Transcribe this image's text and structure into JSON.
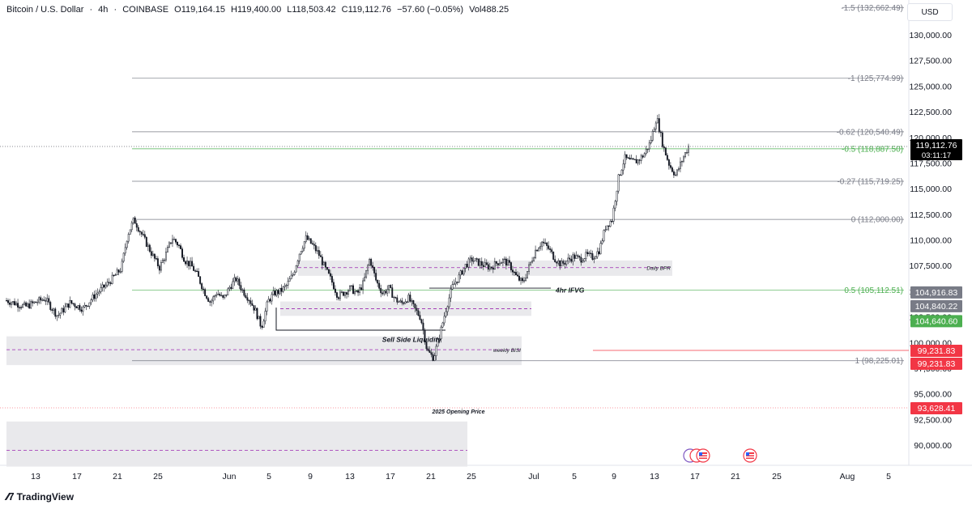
{
  "header": {
    "symbol": "Bitcoin / U.S. Dollar",
    "interval": "4h",
    "exchange": "COINBASE",
    "open": "O119,164.15",
    "high": "H119,400.00",
    "low": "L118,503.42",
    "close": "C119,112.76",
    "change": "−57.60 (−0.05%)",
    "volume": "Vol488.25"
  },
  "currency_button": "USD",
  "brand": "TradingView",
  "chart_data": {
    "type": "candlestick",
    "xlabel": "",
    "ylabel": "",
    "x_ticks": [
      "13",
      "17",
      "21",
      "25",
      "Jun",
      "5",
      "9",
      "13",
      "17",
      "21",
      "25",
      "Jul",
      "5",
      "9",
      "13",
      "17",
      "21",
      "25",
      "Aug",
      "5"
    ],
    "y_ticks": [
      "90,000.00",
      "92,500.00",
      "95,000.00",
      "97,500.00",
      "100,000.00",
      "102,500.00",
      "105,000.00",
      "107,500.00",
      "110,000.00",
      "112,500.00",
      "115,000.00",
      "117,500.00",
      "120,000.00",
      "122,500.00",
      "125,000.00",
      "127,500.00",
      "130,000.00"
    ],
    "ylim": [
      88500,
      133500
    ],
    "price_path": [
      [
        0,
        104100
      ],
      [
        3,
        103500
      ],
      [
        6,
        104300
      ],
      [
        8,
        102600
      ],
      [
        10,
        103900
      ],
      [
        12,
        103300
      ],
      [
        14,
        104700
      ],
      [
        16,
        105800
      ],
      [
        18,
        107200
      ],
      [
        19,
        110500
      ],
      [
        20,
        112000
      ],
      [
        21,
        110800
      ],
      [
        23,
        108400
      ],
      [
        24,
        107300
      ],
      [
        25,
        108600
      ],
      [
        26,
        110200
      ],
      [
        27,
        109500
      ],
      [
        28,
        108000
      ],
      [
        29,
        107500
      ],
      [
        30,
        106500
      ],
      [
        31,
        105000
      ],
      [
        32,
        103900
      ],
      [
        33,
        104900
      ],
      [
        34,
        104200
      ],
      [
        35,
        105400
      ],
      [
        36,
        106200
      ],
      [
        37,
        105100
      ],
      [
        38,
        104300
      ],
      [
        39,
        103200
      ],
      [
        40,
        101500
      ],
      [
        41,
        104000
      ],
      [
        42,
        104800
      ],
      [
        43,
        105000
      ],
      [
        44,
        105600
      ],
      [
        45,
        106700
      ],
      [
        46,
        108800
      ],
      [
        47,
        110200
      ],
      [
        48,
        109500
      ],
      [
        49,
        108600
      ],
      [
        50,
        107200
      ],
      [
        51,
        106000
      ],
      [
        52,
        104500
      ],
      [
        53,
        104900
      ],
      [
        54,
        105300
      ],
      [
        55,
        104700
      ],
      [
        56,
        105800
      ],
      [
        57,
        108200
      ],
      [
        58,
        106000
      ],
      [
        59,
        104800
      ],
      [
        60,
        105300
      ],
      [
        61,
        104200
      ],
      [
        62,
        103800
      ],
      [
        63,
        104400
      ],
      [
        64,
        103300
      ],
      [
        65,
        102400
      ],
      [
        66,
        99200
      ],
      [
        67,
        98500
      ],
      [
        68,
        100800
      ],
      [
        69,
        103400
      ],
      [
        70,
        105500
      ],
      [
        71,
        106400
      ],
      [
        72,
        107500
      ],
      [
        73,
        108100
      ],
      [
        74,
        107800
      ],
      [
        75,
        107500
      ],
      [
        76,
        107300
      ],
      [
        77,
        107800
      ],
      [
        78,
        108000
      ],
      [
        79,
        107500
      ],
      [
        80,
        106400
      ],
      [
        81,
        105800
      ],
      [
        82,
        107400
      ],
      [
        83,
        109000
      ],
      [
        84,
        109800
      ],
      [
        85,
        109200
      ],
      [
        86,
        108200
      ],
      [
        87,
        107600
      ],
      [
        88,
        108000
      ],
      [
        89,
        108400
      ],
      [
        90,
        108100
      ],
      [
        91,
        108500
      ],
      [
        92,
        108300
      ],
      [
        93,
        109000
      ],
      [
        94,
        111300
      ],
      [
        95,
        112000
      ],
      [
        96,
        116000
      ],
      [
        97,
        118000
      ],
      [
        98,
        117600
      ],
      [
        99,
        117700
      ],
      [
        100,
        118300
      ],
      [
        101,
        119500
      ],
      [
        102,
        122000
      ],
      [
        103,
        119200
      ],
      [
        104,
        117300
      ],
      [
        105,
        116300
      ],
      [
        106,
        117800
      ],
      [
        107,
        119112.76
      ]
    ],
    "fib_levels": [
      {
        "label": "-1.5 (132,662.49)",
        "value": 132662.49,
        "color": "#787b86"
      },
      {
        "label": "-1 (125,774.99)",
        "value": 125774.99,
        "color": "#787b86"
      },
      {
        "label": "-0.62 (120,540.49)",
        "value": 120540.49,
        "color": "#787b86"
      },
      {
        "label": "-0.5 (118,887.50)",
        "value": 118887.5,
        "color": "#4caf50"
      },
      {
        "label": "-0.27 (115,719.25)",
        "value": 115719.25,
        "color": "#787b86"
      },
      {
        "label": "0 (112,000.00)",
        "value": 112000.0,
        "color": "#787b86"
      },
      {
        "label": "0.5 (105,112.51)",
        "value": 105112.51,
        "color": "#4caf50"
      },
      {
        "label": "1 (98,225.01)",
        "value": 98225.01,
        "color": "#787b86"
      }
    ],
    "zones": [
      {
        "label": "Daily BPR",
        "y_top": 108000,
        "y_bottom": 106500,
        "mid": 107300
      },
      {
        "label": "",
        "y_top": 104000,
        "y_bottom": 102600,
        "mid": 103300
      },
      {
        "label": "weekly BISI",
        "y_top": 100600,
        "y_bottom": 97800,
        "mid": 99300
      },
      {
        "label": "",
        "y_top": 92300,
        "y_bottom": 87900,
        "mid": 89500
      }
    ],
    "annotations": [
      {
        "text": "Sell Side Liquidity",
        "value": 101000
      },
      {
        "text": "4hr  IFVG",
        "value": 105200
      },
      {
        "text": "2025 Opening Price",
        "value": 93628.41
      }
    ],
    "price_labels": [
      {
        "text": "119,112.76",
        "sub": "03:11:17",
        "value": 119112.76,
        "bg": "#000000",
        "fg": "#ffffff"
      },
      {
        "text": "104,916.83",
        "value": 104916.83,
        "bg": "#787b86",
        "fg": "#ffffff"
      },
      {
        "text": "104,840.22",
        "value": 104840.22,
        "bg": "#787b86",
        "fg": "#ffffff"
      },
      {
        "text": "104,640.60",
        "value": 104640.6,
        "bg": "#4caf50",
        "fg": "#ffffff"
      },
      {
        "text": "99,231.83",
        "value": 99231.83,
        "bg": "#f23645",
        "fg": "#ffffff"
      },
      {
        "text": "99,231.83",
        "value": 99231.83,
        "bg": "#f23645",
        "fg": "#ffffff"
      },
      {
        "text": "93,628.41",
        "value": 93628.41,
        "bg": "#f23645",
        "fg": "#ffffff"
      }
    ],
    "event_icons": [
      "us-flag-event-icon",
      "us-flag-event-icon"
    ],
    "colors": {
      "up": "#131722",
      "down": "#131722",
      "grid": "#f0f3fa",
      "zone": "#e9e9ec",
      "zone_mid": "#9c27b0"
    }
  }
}
